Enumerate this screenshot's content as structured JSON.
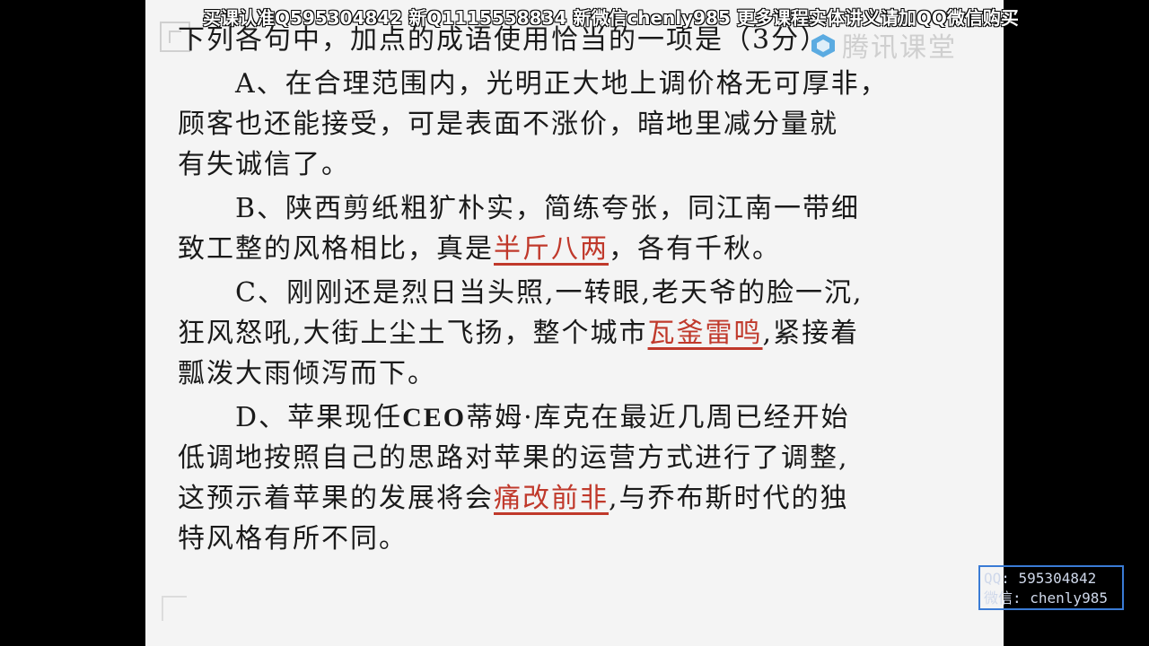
{
  "banner": {
    "text": "买课认准Q595304842 新Q1115558834 新微信chenly985 更多课程实体讲义请加QQ微信购买"
  },
  "watermark": {
    "logo_icon": "cloud-classroom-logo-icon",
    "text": "腾讯课堂"
  },
  "question": {
    "title": "下列各句中，加点的成语使用恰当的一项是（3分）",
    "options": [
      {
        "label": "A、",
        "lines": [
          "在合理范围内，光明正大地上调价格无可厚非，",
          "顾客也还能接受，可是表面不涨价，暗地里减分量就",
          "有失诚信了。"
        ]
      },
      {
        "label": "B、",
        "line1": "陕西剪纸粗犷朴实，简练夸张，同江南一带细",
        "line2_before": "致工整的风格相比，真是",
        "idiom": "半斤八两",
        "line2_after": "，各有千秋。"
      },
      {
        "label": "C、",
        "line1": "刚刚还是烈日当头照,一转眼,老天爷的脸一沉,",
        "line2_before": "狂风怒吼,大街上尘土飞扬，整个城市",
        "idiom": "瓦釜雷鸣",
        "line2_after": ",紧接着",
        "line3": "瓢泼大雨倾泻而下。"
      },
      {
        "label": "D、",
        "line1_before": "苹果现任",
        "line1_ceo": "CEO",
        "line1_after": "蒂姆·库克在最近几周已经开始",
        "line2": "低调地按照自己的思路对苹果的运营方式进行了调整,",
        "line3_before": "这预示着苹果的发展将会",
        "idiom": "痛改前非",
        "line3_after": ",与乔布斯时代的独",
        "line4": "特风格有所不同。"
      }
    ]
  },
  "contact": {
    "qq": "QQ: 595304842",
    "wechat": "微信: chenly985"
  },
  "colors": {
    "idiom_highlight": "#c0392b",
    "contact_border": "#3a7bd5"
  }
}
